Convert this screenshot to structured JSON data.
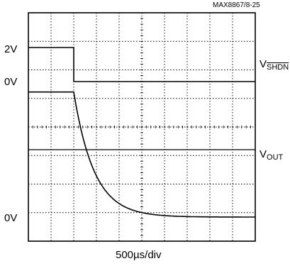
{
  "figure_id": "MAX8867/8-25",
  "x_scale": "500µs/div",
  "chart_data": {
    "type": "line",
    "grid": true,
    "x_divisions": 10,
    "y_divisions": 8,
    "x_scale_per_div_us": 500,
    "xlim_us": [
      0,
      5000
    ],
    "y_level_labels": [
      "2V",
      "0V",
      "0V"
    ],
    "series": [
      {
        "name_main": "V",
        "name_sub": "SHDN",
        "name_sub_overline": true,
        "y_label_high": "2V",
        "y_label_low": "0V",
        "x": [
          0,
          1000,
          1000.1,
          5000
        ],
        "y_v": [
          2,
          2,
          0,
          0
        ]
      },
      {
        "name_main": "V",
        "name_sub": "OUT",
        "y_label_low": "0V",
        "step_time_us": 1000,
        "initial_level_div": 4.38,
        "time_constant_us": 450
      }
    ]
  }
}
